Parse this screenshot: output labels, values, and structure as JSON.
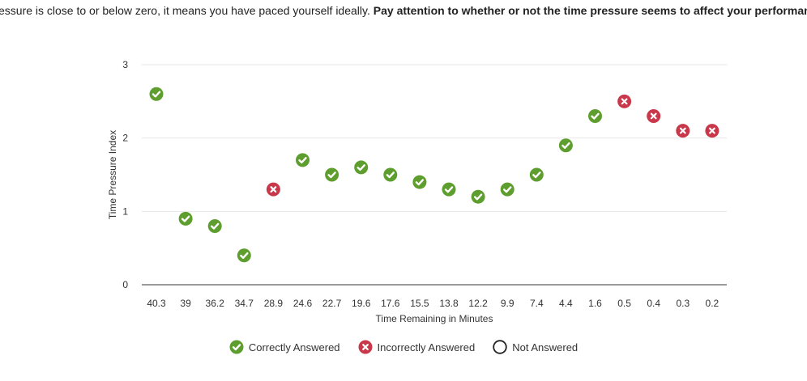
{
  "intro": {
    "text_normal": "essure is close to or below zero, it means you have paced yourself ideally.",
    "text_bold": "Pay attention to whether or not the time pressure seems to affect your performance."
  },
  "colors": {
    "correct": "#5e9e2e",
    "incorrect": "#c9384a",
    "not_answered": "#222222",
    "grid": "#e6e6e6",
    "axis": "#333333"
  },
  "legend": {
    "correct": "Correctly Answered",
    "incorrect": "Incorrectly Answered",
    "not_answered": "Not Answered"
  },
  "chart_data": {
    "type": "scatter",
    "xlabel": "Time Remaining in Minutes",
    "ylabel": "Time Pressure Index",
    "ylim": [
      0,
      3
    ],
    "yticks": [
      0,
      1,
      2,
      3
    ],
    "grid": true,
    "legend_position": "bottom",
    "categories": [
      "40.3",
      "39",
      "36.2",
      "34.7",
      "28.9",
      "24.6",
      "22.7",
      "19.6",
      "17.6",
      "15.5",
      "13.8",
      "12.2",
      "9.9",
      "7.4",
      "4.4",
      "1.6",
      "0.5",
      "0.4",
      "0.3",
      "0.2"
    ],
    "points": [
      {
        "x": "40.3",
        "y": 2.6,
        "status": "correct"
      },
      {
        "x": "39",
        "y": 0.9,
        "status": "correct"
      },
      {
        "x": "36.2",
        "y": 0.8,
        "status": "correct"
      },
      {
        "x": "34.7",
        "y": 0.4,
        "status": "correct"
      },
      {
        "x": "28.9",
        "y": 1.3,
        "status": "incorrect"
      },
      {
        "x": "24.6",
        "y": 1.7,
        "status": "correct"
      },
      {
        "x": "22.7",
        "y": 1.5,
        "status": "correct"
      },
      {
        "x": "19.6",
        "y": 1.6,
        "status": "correct"
      },
      {
        "x": "17.6",
        "y": 1.5,
        "status": "correct"
      },
      {
        "x": "15.5",
        "y": 1.4,
        "status": "correct"
      },
      {
        "x": "13.8",
        "y": 1.3,
        "status": "correct"
      },
      {
        "x": "12.2",
        "y": 1.2,
        "status": "correct"
      },
      {
        "x": "9.9",
        "y": 1.3,
        "status": "correct"
      },
      {
        "x": "7.4",
        "y": 1.5,
        "status": "correct"
      },
      {
        "x": "4.4",
        "y": 1.9,
        "status": "correct"
      },
      {
        "x": "1.6",
        "y": 2.3,
        "status": "correct"
      },
      {
        "x": "0.5",
        "y": 2.5,
        "status": "incorrect"
      },
      {
        "x": "0.4",
        "y": 2.3,
        "status": "incorrect"
      },
      {
        "x": "0.3",
        "y": 2.1,
        "status": "incorrect"
      },
      {
        "x": "0.2",
        "y": 2.1,
        "status": "incorrect"
      }
    ]
  }
}
